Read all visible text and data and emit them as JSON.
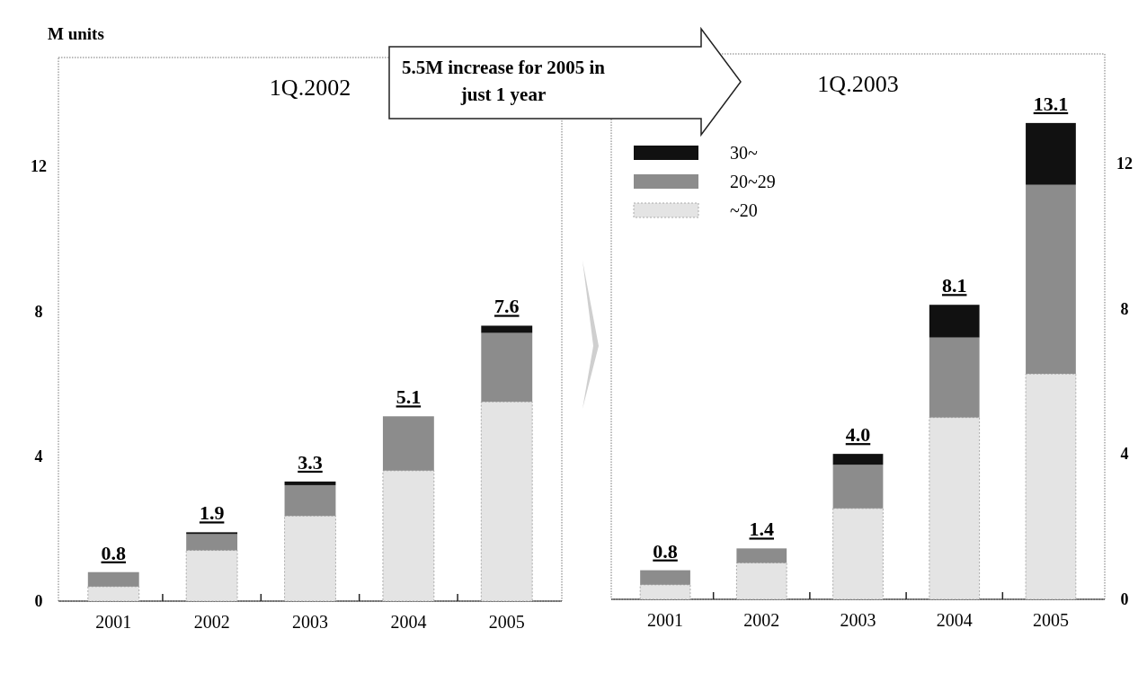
{
  "chart_data": [
    {
      "type": "bar",
      "stacked": true,
      "title": "1Q.2002",
      "ylabel": "M units",
      "categories": [
        "2001",
        "2002",
        "2003",
        "2004",
        "2005"
      ],
      "series": [
        {
          "color": "#e4e4e4",
          "values": [
            0.4,
            1.4,
            2.35,
            3.6,
            5.5
          ]
        },
        {
          "color": "#8c8c8c",
          "values": [
            0.4,
            0.45,
            0.85,
            1.5,
            1.9
          ]
        },
        {
          "color": "#111111",
          "values": [
            0,
            0.05,
            0.1,
            0,
            0.2
          ]
        }
      ],
      "totals": [
        "0.8",
        "1.9",
        "3.3",
        "5.1",
        "7.6"
      ],
      "ylim": [
        0,
        15
      ],
      "yticks": [
        0,
        4,
        8,
        12
      ],
      "legend": false,
      "grid": false,
      "annotations": [
        "5.5M increase for 2005 in just 1 year"
      ]
    },
    {
      "type": "bar",
      "stacked": true,
      "title": "1Q.2003",
      "categories": [
        "2001",
        "2002",
        "2003",
        "2004",
        "2005"
      ],
      "series": [
        {
          "name": "~20",
          "color": "#e4e4e4",
          "values": [
            0.4,
            1.0,
            2.5,
            5.0,
            6.2
          ]
        },
        {
          "name": "20~29",
          "color": "#8c8c8c",
          "values": [
            0.4,
            0.4,
            1.2,
            2.2,
            5.2
          ]
        },
        {
          "name": "30~",
          "color": "#111111",
          "values": [
            0,
            0,
            0.3,
            0.9,
            1.7
          ]
        }
      ],
      "totals": [
        "0.8",
        "1.4",
        "4.0",
        "8.1",
        "13.1"
      ],
      "ylim": [
        0,
        15
      ],
      "yticks": [
        0,
        4,
        8,
        12
      ],
      "legend": "top left",
      "grid": false
    }
  ]
}
